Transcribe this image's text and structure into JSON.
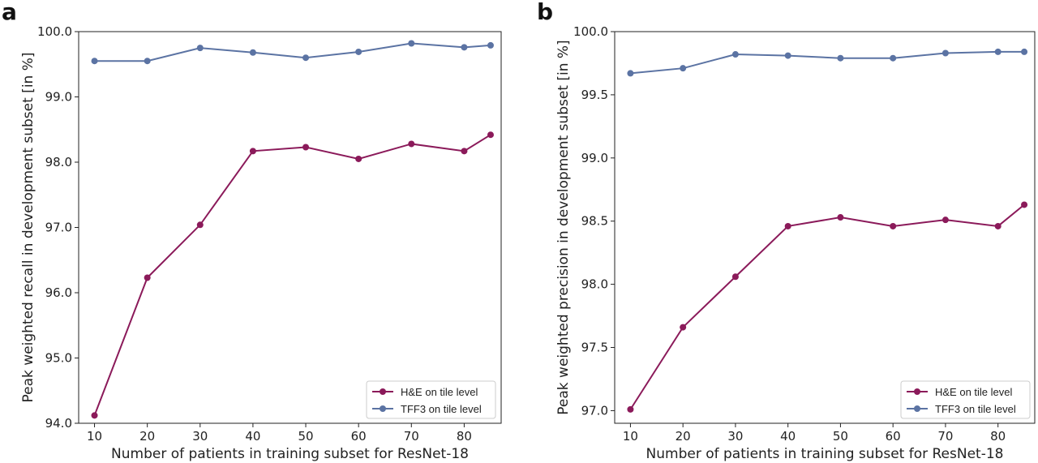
{
  "colors": {
    "he": "#8b1a5a",
    "tff3": "#5b73a3"
  },
  "chart_data": [
    {
      "type": "line",
      "panel": "a",
      "xlabel": "Number of patients in training subset for ResNet-18",
      "ylabel": "Peak weighted recall in development subset [in %]",
      "xlim": [
        7,
        87
      ],
      "ylim": [
        94.0,
        100.0
      ],
      "xticks": [
        10,
        20,
        30,
        40,
        50,
        60,
        70,
        80
      ],
      "yticks": [
        94.0,
        95.0,
        96.0,
        97.0,
        98.0,
        99.0,
        100.0
      ],
      "ytick_labels": [
        "94.0",
        "95.0",
        "96.0",
        "97.0",
        "98.0",
        "99.0",
        "100.0"
      ],
      "legend_position": "lower-right",
      "grid": false,
      "x": [
        10,
        20,
        30,
        40,
        50,
        60,
        70,
        80,
        85
      ],
      "series": [
        {
          "name": "H&E on tile level",
          "color": "#8b1a5a",
          "values": [
            94.12,
            96.23,
            97.04,
            98.17,
            98.23,
            98.05,
            98.28,
            98.17,
            98.42
          ]
        },
        {
          "name": "TFF3 on tile level",
          "color": "#5b73a3",
          "values": [
            99.55,
            99.55,
            99.75,
            99.68,
            99.6,
            99.69,
            99.82,
            99.76,
            99.79
          ]
        }
      ]
    },
    {
      "type": "line",
      "panel": "b",
      "xlabel": "Number of patients in training subset for ResNet-18",
      "ylabel": "Peak weighted precision in development subset [in %]",
      "xlim": [
        7,
        87
      ],
      "ylim": [
        96.9,
        100.0
      ],
      "xticks": [
        10,
        20,
        30,
        40,
        50,
        60,
        70,
        80
      ],
      "yticks": [
        97.0,
        97.5,
        98.0,
        98.5,
        99.0,
        99.5,
        100.0
      ],
      "ytick_labels": [
        "97.0",
        "97.5",
        "98.0",
        "98.5",
        "99.0",
        "99.5",
        "100.0"
      ],
      "legend_position": "lower-right",
      "grid": false,
      "x": [
        10,
        20,
        30,
        40,
        50,
        60,
        70,
        80,
        85
      ],
      "series": [
        {
          "name": "H&E on tile level",
          "color": "#8b1a5a",
          "values": [
            97.01,
            97.66,
            98.06,
            98.46,
            98.53,
            98.46,
            98.51,
            98.46,
            98.63
          ]
        },
        {
          "name": "TFF3 on tile level",
          "color": "#5b73a3",
          "values": [
            99.67,
            99.71,
            99.82,
            99.81,
            99.79,
            99.79,
            99.83,
            99.84,
            99.84
          ]
        }
      ]
    }
  ]
}
